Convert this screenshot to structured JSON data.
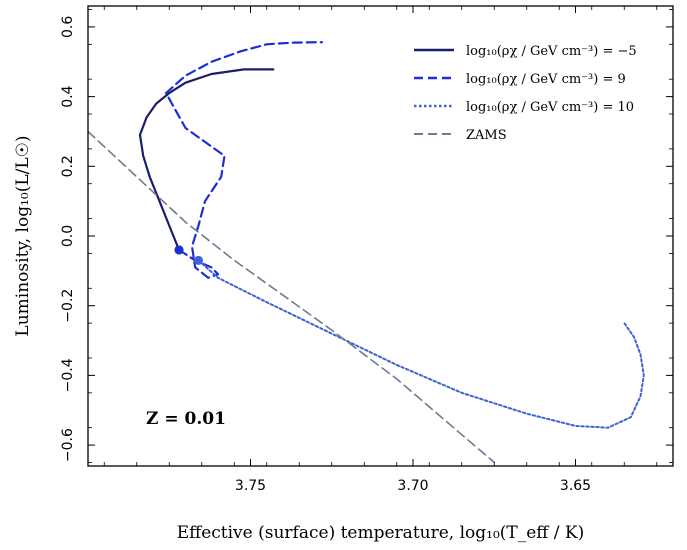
{
  "chart_data": {
    "type": "line",
    "xlabel": "Effective (surface) temperature, log₁₀(T_eff / K)",
    "ylabel": "Luminosity, log₁₀(L/L☉)",
    "xlim": [
      3.8,
      3.62
    ],
    "ylim": [
      -0.66,
      0.66
    ],
    "x_inverted": true,
    "x_ticks": [
      3.75,
      3.7,
      3.65
    ],
    "x_tick_labels": [
      "3.75",
      "3.70",
      "3.65"
    ],
    "y_ticks": [
      -0.6,
      -0.4,
      -0.2,
      0.0,
      0.2,
      0.4,
      0.6
    ],
    "y_tick_labels": [
      "−0.6",
      "−0.4",
      "−0.2",
      "0.0",
      "0.2",
      "0.4",
      "0.6"
    ],
    "legend_position": "top-right",
    "annotation": "Z = 0.01",
    "series": [
      {
        "name": "log₁₀(ρχ / GeV cm⁻³) = −5",
        "style": "solid",
        "color": "#1b1f6b",
        "x": [
          3.772,
          3.775,
          3.778,
          3.781,
          3.783,
          3.784,
          3.782,
          3.779,
          3.775,
          3.77,
          3.762,
          3.752,
          3.743
        ],
        "y": [
          -0.04,
          0.03,
          0.1,
          0.17,
          0.23,
          0.29,
          0.34,
          0.38,
          0.41,
          0.44,
          0.465,
          0.478,
          0.478
        ],
        "start_marker": [
          3.772,
          -0.04
        ]
      },
      {
        "name": "log₁₀(ρχ / GeV cm⁻³) = 9",
        "style": "dashed",
        "color": "#1a2fd8",
        "x": [
          3.772,
          3.767,
          3.762,
          3.76,
          3.763,
          3.767,
          3.768,
          3.766,
          3.764,
          3.759,
          3.758,
          3.764,
          3.77,
          3.776,
          3.77,
          3.762,
          3.753,
          3.745,
          3.737,
          3.728
        ],
        "y": [
          -0.04,
          -0.07,
          -0.09,
          -0.11,
          -0.12,
          -0.09,
          -0.03,
          0.03,
          0.1,
          0.17,
          0.23,
          0.27,
          0.31,
          0.41,
          0.46,
          0.5,
          0.53,
          0.55,
          0.555,
          0.556
        ],
        "start_marker": [
          3.772,
          -0.04
        ]
      },
      {
        "name": "log₁₀(ρχ / GeV cm⁻³) = 10",
        "style": "dotted",
        "color": "#3d63d4",
        "x": [
          3.766,
          3.76,
          3.745,
          3.725,
          3.705,
          3.685,
          3.665,
          3.65,
          3.64,
          3.633,
          3.63,
          3.629,
          3.63,
          3.632,
          3.635
        ],
        "y": [
          -0.07,
          -0.12,
          -0.19,
          -0.28,
          -0.37,
          -0.45,
          -0.51,
          -0.545,
          -0.55,
          -0.52,
          -0.46,
          -0.4,
          -0.34,
          -0.29,
          -0.25
        ],
        "start_marker": [
          3.766,
          -0.07
        ]
      },
      {
        "name": "ZAMS",
        "style": "dashed",
        "color": "#6e7b95",
        "x": [
          3.8,
          3.785,
          3.77,
          3.755,
          3.74,
          3.725,
          3.705,
          3.69,
          3.675
        ],
        "y": [
          0.3,
          0.17,
          0.04,
          -0.07,
          -0.17,
          -0.27,
          -0.41,
          -0.53,
          -0.65
        ]
      }
    ]
  }
}
